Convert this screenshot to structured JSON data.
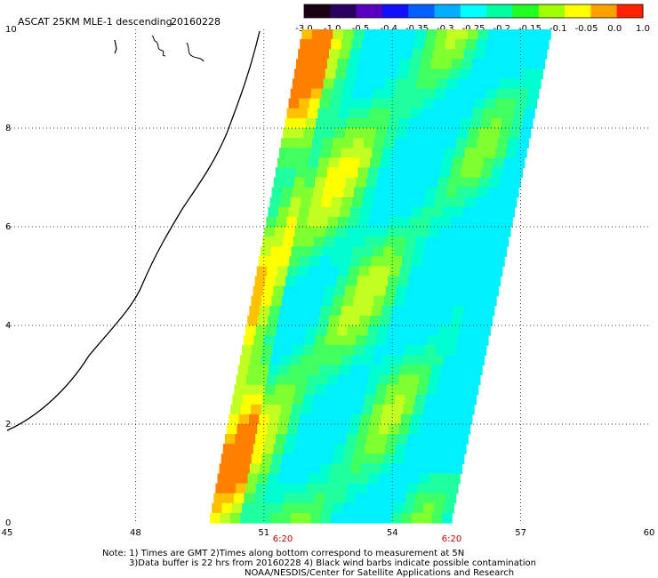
{
  "title": "ASCAT 25KM MLE-1 descending",
  "date": "20160228",
  "colorbar": {
    "labels": [
      "-3.0",
      "-1.0",
      "-0.5",
      "-0.4",
      "-0.35",
      "-0.3",
      "-0.25",
      "-0.2",
      "-0.15",
      "-0.1",
      "-0.05",
      "0.0",
      "1.0"
    ],
    "colors": [
      "#1a0010",
      "#2a0060",
      "#5a00c0",
      "#1010ff",
      "#0060ff",
      "#00b0ff",
      "#00ffff",
      "#00ffa0",
      "#20ff20",
      "#a0ff00",
      "#ffff00",
      "#ffa000",
      "#ff2000"
    ]
  },
  "axes": {
    "x_ticks": [
      "45",
      "48",
      "51",
      "54",
      "57",
      "60"
    ],
    "y_ticks": [
      "0",
      "2",
      "4",
      "6",
      "8",
      "10"
    ],
    "time_labels": [
      "6:20",
      "6:20"
    ],
    "time_color": "#c00000"
  },
  "notes": {
    "line1": "Note: 1) Times are GMT 2)Times along bottom correspond to measurement at 5N",
    "line2": "3)Data buffer is 22 hrs from 20160228 4) Black wind barbs indicate possible contamination",
    "line3": "NOAA/NESDIS/Center for Satellite Applications and Research"
  }
}
